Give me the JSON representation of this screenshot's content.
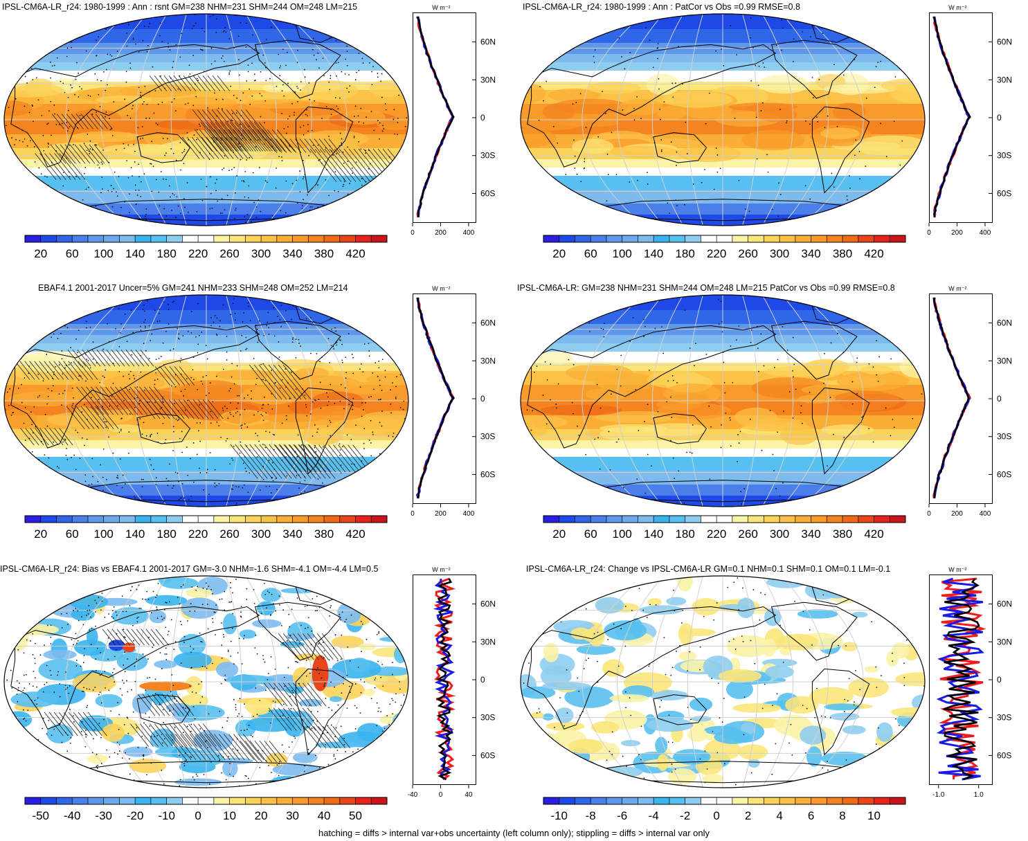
{
  "panels": [
    {
      "title": "IPSL-CM6A-LR_r24: 1980-1999 : Ann : rsnt GM=238 NHM=231 SHM=244 OM=248 LM=215",
      "map_type": "absolute",
      "profile_ticks": [
        "0",
        "200",
        "400"
      ],
      "colorbar_labels": [
        "20",
        "60",
        "100",
        "140",
        "180",
        "220",
        "260",
        "300",
        "340",
        "380",
        "420"
      ],
      "overlays": "hatching+stippling"
    },
    {
      "title": "IPSL-CM6A-LR_r24: 1980-1999 : Ann : PatCor vs Obs =0.99 RMSE=0.8",
      "map_type": "absolute",
      "profile_ticks": [
        "0",
        "200",
        "400"
      ],
      "colorbar_labels": [
        "20",
        "60",
        "100",
        "140",
        "180",
        "220",
        "260",
        "300",
        "340",
        "380",
        "420"
      ],
      "overlays": "stippling"
    },
    {
      "title": "EBAF4.1 2001-2017 Uncer=5% GM=241 NHM=233 SHM=248 OM=252 LM=214",
      "map_type": "absolute",
      "profile_ticks": [
        "0",
        "200",
        "400"
      ],
      "colorbar_labels": [
        "20",
        "60",
        "100",
        "140",
        "180",
        "220",
        "260",
        "300",
        "340",
        "380",
        "420"
      ],
      "overlays": "hatching+stippling"
    },
    {
      "title": "IPSL-CM6A-LR: GM=238 NHM=231 SHM=244 OM=248 LM=215 PatCor vs Obs =0.99 RMSE=0.8",
      "map_type": "absolute",
      "profile_ticks": [
        "0",
        "200",
        "400"
      ],
      "colorbar_labels": [
        "20",
        "60",
        "100",
        "140",
        "180",
        "220",
        "260",
        "300",
        "340",
        "380",
        "420"
      ],
      "overlays": "stippling"
    },
    {
      "title": "IPSL-CM6A-LR_r24: Bias vs EBAF4.1 2001-2017 GM=-3.0 NHM=-1.6 SHM=-4.1 OM=-4.4 LM=0.5",
      "map_type": "bias",
      "profile_ticks": [
        "-40",
        "0",
        "40"
      ],
      "colorbar_labels": [
        "-50",
        "-40",
        "-30",
        "-20",
        "-10",
        "0",
        "10",
        "20",
        "30",
        "40",
        "50"
      ],
      "overlays": "hatching+stippling"
    },
    {
      "title": "IPSL-CM6A-LR_r24: Change vs IPSL-CM6A-LR GM=0.1 NHM=0.1 SHM=0.1 OM=0.1 LM=-0.1",
      "map_type": "change",
      "profile_ticks": [
        "-1.0",
        "1.0"
      ],
      "colorbar_labels": [
        "-10",
        "-8",
        "-6",
        "-4",
        "-2",
        "0",
        "2",
        "4",
        "6",
        "8",
        "10"
      ],
      "overlays": "stippling"
    }
  ],
  "profile_unit": "W m⁻²",
  "lat_labels": [
    "60N",
    "30N",
    "0",
    "30S",
    "60S"
  ],
  "footer": "hatching = diffs > internal var+obs uncertainty (left column only); stippling = diffs > internal var only",
  "colors": {
    "absolute_scale": [
      "#2a1fe0",
      "#1f49e6",
      "#3066e8",
      "#4b80ea",
      "#5f97ea",
      "#6fa9ec",
      "#7dbbef",
      "#3ab4ee",
      "#58c0f0",
      "#8fcdf0",
      "#ffffff",
      "#ffffff",
      "#fbf3a6",
      "#fbe57a",
      "#fcd35a",
      "#fcc247",
      "#fbae35",
      "#f99a2a",
      "#f5831f",
      "#f06a17",
      "#e8451a",
      "#e2241c",
      "#c8141a"
    ],
    "diff_scale": [
      "#2a1fe0",
      "#1f49e6",
      "#3066e8",
      "#4b80ea",
      "#5f97ea",
      "#6fa9ec",
      "#7dbbef",
      "#3ab4ee",
      "#58c0f0",
      "#8fcdf0",
      "#ffffff",
      "#ffffff",
      "#fbf3a6",
      "#fbe57a",
      "#fcd35a",
      "#fcc247",
      "#fbae35",
      "#f99a2a",
      "#f5831f",
      "#f06a17",
      "#e8451a",
      "#e2241c",
      "#c8141a"
    ],
    "profile_red": "#ee1c1c",
    "profile_blue": "#1a1ae6",
    "profile_black": "#000000"
  }
}
